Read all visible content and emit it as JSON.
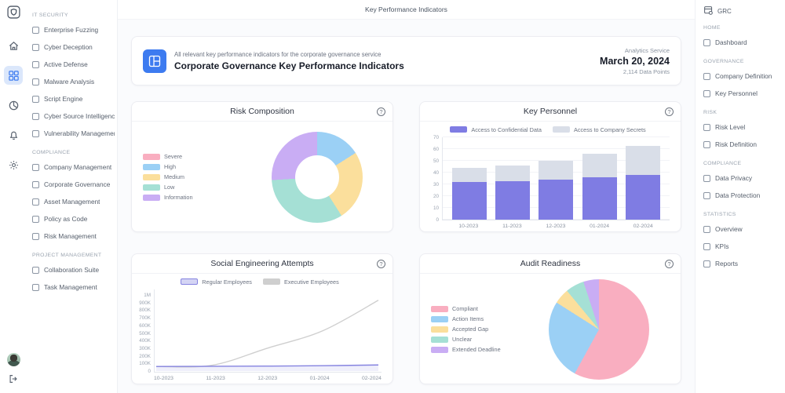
{
  "topbar": {
    "title": "Key Performance Indicators",
    "app_label": "GRC"
  },
  "ui": {
    "help_glyph": "?"
  },
  "icon_rail": {
    "icons": [
      "app-logo",
      "home",
      "dashboard",
      "analytics",
      "notifications",
      "settings"
    ],
    "bottom": [
      "user-avatar",
      "logout"
    ],
    "active": "dashboard",
    "accent": "#3d7bf0"
  },
  "left_sidebar": {
    "sections": [
      {
        "label": "IT SECURITY",
        "items": [
          "Enterprise Fuzzing",
          "Cyber Deception",
          "Active Defense",
          "Malware Analysis",
          "Script Engine",
          "Cyber Source Intelligence",
          "Vulnerability Management"
        ]
      },
      {
        "label": "COMPLIANCE",
        "items": [
          "Company Management",
          "Corporate Governance",
          "Asset Management",
          "Policy as Code",
          "Risk Management"
        ]
      },
      {
        "label": "PROJECT MANAGEMENT",
        "items": [
          "Collaboration Suite",
          "Task Management"
        ]
      }
    ]
  },
  "right_sidebar": {
    "sections": [
      {
        "label": "HOME",
        "items": [
          "Dashboard"
        ]
      },
      {
        "label": "GOVERNANCE",
        "items": [
          "Company Definition",
          "Key Personnel"
        ]
      },
      {
        "label": "RISK",
        "items": [
          "Risk Level",
          "Risk Definition"
        ]
      },
      {
        "label": "COMPLIANCE",
        "items": [
          "Data Privacy",
          "Data Protection"
        ]
      },
      {
        "label": "STATISTICS",
        "items": [
          "Overview",
          "KPIs",
          "Reports"
        ]
      }
    ]
  },
  "header_card": {
    "subtitle": "All relevant key performance indicators for the corporate governance service",
    "title": "Corporate Governance Key Performance Indicators",
    "meta_label": "Analytics Service",
    "date": "March 20, 2024",
    "data_points": "2,114 Data Points"
  },
  "chart_data": [
    {
      "type": "donut",
      "title": "Risk Composition",
      "labels": [
        "Severe",
        "High",
        "Medium",
        "Low",
        "Information"
      ],
      "values": [
        0,
        16,
        25,
        33,
        26
      ],
      "colors": [
        "#f9aec0",
        "#9bd0f5",
        "#fbdf9c",
        "#a5e0d5",
        "#c9adf4"
      ],
      "legend_position": "left",
      "hole": 0.52
    },
    {
      "type": "stacked-bar",
      "title": "Key Personnel",
      "categories": [
        "10-2023",
        "11-2023",
        "12-2023",
        "01-2024",
        "02-2024"
      ],
      "series": [
        {
          "name": "Access to Confidential Data",
          "color": "#7f7ce3",
          "values": [
            32,
            33,
            34,
            36,
            38
          ]
        },
        {
          "name": "Access to Company Secrets",
          "color": "#d9dee8",
          "values": [
            12,
            13,
            16,
            20,
            25
          ]
        }
      ],
      "ylim": [
        0,
        70
      ],
      "yticks": [
        0,
        10,
        20,
        30,
        40,
        50,
        60,
        70
      ],
      "legend_position": "top",
      "grid": true
    },
    {
      "type": "line",
      "title": "Social Engineering Attempts",
      "categories": [
        "10-2023",
        "11-2023",
        "12-2023",
        "01-2024",
        "02-2024"
      ],
      "series": [
        {
          "name": "Regular Employees",
          "color": "#8583e0",
          "values": [
            60000,
            62000,
            65000,
            70000,
            80000
          ],
          "area": true
        },
        {
          "name": "Executive Employees",
          "color": "#cfcfcf",
          "values": [
            60000,
            75000,
            300000,
            530000,
            930000
          ]
        }
      ],
      "ylim": [
        0,
        1000000
      ],
      "ytick_values": [
        0,
        100000,
        200000,
        300000,
        400000,
        500000,
        600000,
        700000,
        800000,
        900000,
        1000000
      ],
      "ytick_labels": [
        "0",
        "100K",
        "200K",
        "300K",
        "400K",
        "500K",
        "600K",
        "700K",
        "800K",
        "900K",
        "1M"
      ],
      "legend_position": "top",
      "grid": false
    },
    {
      "type": "pie",
      "title": "Audit Readiness",
      "labels": [
        "Compliant",
        "Action Items",
        "Accepted Gap",
        "Unclear",
        "Extended Deadline"
      ],
      "values": [
        58,
        26,
        5,
        6,
        5
      ],
      "colors": [
        "#f9aec0",
        "#9bd0f5",
        "#fbdf9c",
        "#a5e0d5",
        "#c9adf4"
      ],
      "legend_position": "left"
    }
  ],
  "colors": {
    "accent_blue": "#3d7bf0",
    "rail_active_bg": "#dbe7fb",
    "content_bg": "#fafbfd",
    "card_border": "#ecedf2",
    "bar_purple": "#7f7ce3",
    "bar_gray": "#d9dee8",
    "pastel_pink": "#f9aec0",
    "pastel_blue": "#9bd0f5",
    "pastel_yellow": "#fbdf9c",
    "pastel_teal": "#a5e0d5",
    "pastel_purple": "#c9adf4"
  }
}
